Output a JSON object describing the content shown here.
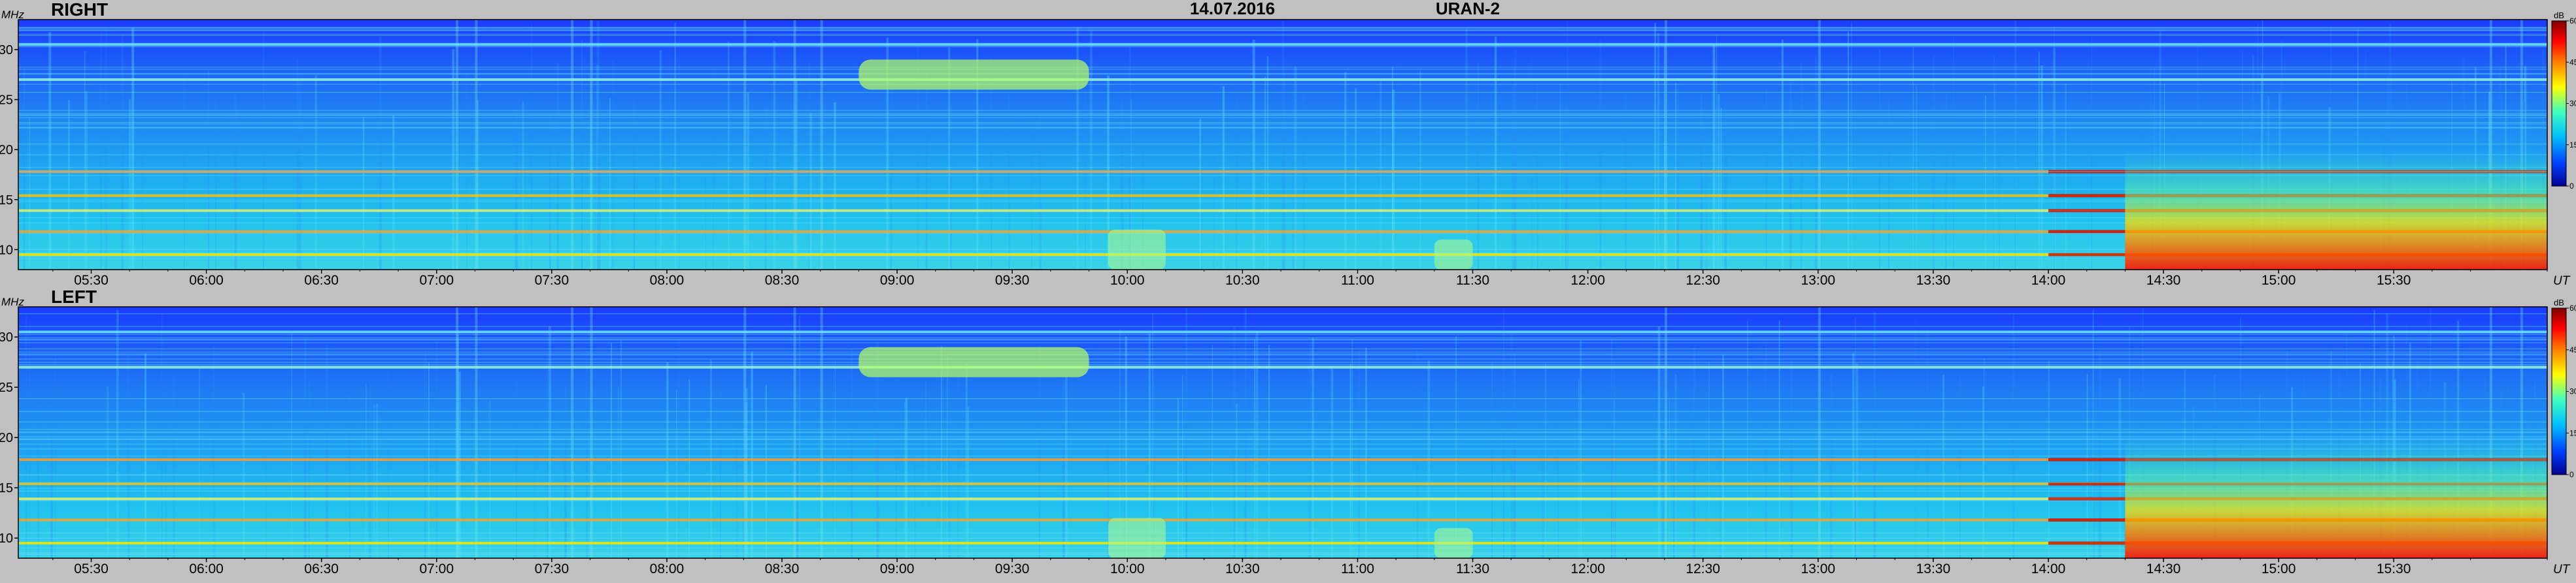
{
  "header": {
    "date": "14.07.2016",
    "station": "URAN-2"
  },
  "chart_data": [
    {
      "type": "heatmap",
      "panel_label": "RIGHT",
      "y_unit": "MHz",
      "x_unit": "UT",
      "colorbar_unit": "dB",
      "ylim": [
        8,
        33
      ],
      "yticks": [
        10,
        15,
        20,
        25,
        30
      ],
      "xlim": [
        "05:11",
        "16:10"
      ],
      "xticks": [
        "05:30",
        "06:00",
        "06:30",
        "07:00",
        "07:30",
        "08:00",
        "08:30",
        "09:00",
        "09:30",
        "10:00",
        "10:30",
        "11:00",
        "11:30",
        "12:00",
        "12:30",
        "13:00",
        "13:30",
        "14:00",
        "14:30",
        "15:00",
        "15:30"
      ],
      "colorbar_range": [
        0,
        60
      ],
      "colorbar_ticks": [
        0,
        15,
        30,
        45,
        60
      ],
      "colormap": [
        "#00008f",
        "#0040ff",
        "#00c0ff",
        "#40ffbf",
        "#ffff00",
        "#ff8000",
        "#ff0000",
        "#800000"
      ],
      "bands_mhz": [
        9.5,
        11.8,
        13.9,
        15.4,
        17.8,
        27.0,
        30.5
      ],
      "burst_regions": [
        {
          "start": "08:50",
          "end": "09:50",
          "freq_mhz": [
            26,
            29
          ]
        },
        {
          "start": "14:20",
          "end": "16:10",
          "freq_mhz": [
            8,
            20
          ]
        },
        {
          "start": "09:55",
          "end": "10:10",
          "freq_mhz": [
            8,
            12
          ]
        },
        {
          "start": "11:20",
          "end": "11:30",
          "freq_mhz": [
            8,
            11
          ]
        }
      ]
    },
    {
      "type": "heatmap",
      "panel_label": "LEFT",
      "y_unit": "MHz",
      "x_unit": "UT",
      "colorbar_unit": "dB",
      "ylim": [
        8,
        33
      ],
      "yticks": [
        10,
        15,
        20,
        25,
        30
      ],
      "xlim": [
        "05:11",
        "16:10"
      ],
      "xticks": [
        "05:30",
        "06:00",
        "06:30",
        "07:00",
        "07:30",
        "08:00",
        "08:30",
        "09:00",
        "09:30",
        "10:00",
        "10:30",
        "11:00",
        "11:30",
        "12:00",
        "12:30",
        "13:00",
        "13:30",
        "14:00",
        "14:30",
        "15:00",
        "15:30"
      ],
      "colorbar_range": [
        0,
        60
      ],
      "colorbar_ticks": [
        0,
        15,
        30,
        45,
        60
      ],
      "colormap": [
        "#00008f",
        "#0040ff",
        "#00c0ff",
        "#40ffbf",
        "#ffff00",
        "#ff8000",
        "#ff0000",
        "#800000"
      ],
      "bands_mhz": [
        9.5,
        11.8,
        13.9,
        15.4,
        17.8,
        27.0,
        30.5
      ],
      "burst_regions": [
        {
          "start": "08:50",
          "end": "09:50",
          "freq_mhz": [
            26,
            29
          ]
        },
        {
          "start": "14:20",
          "end": "16:10",
          "freq_mhz": [
            8,
            20
          ]
        },
        {
          "start": "09:55",
          "end": "10:10",
          "freq_mhz": [
            8,
            12
          ]
        },
        {
          "start": "11:20",
          "end": "11:30",
          "freq_mhz": [
            8,
            11
          ]
        }
      ]
    }
  ]
}
